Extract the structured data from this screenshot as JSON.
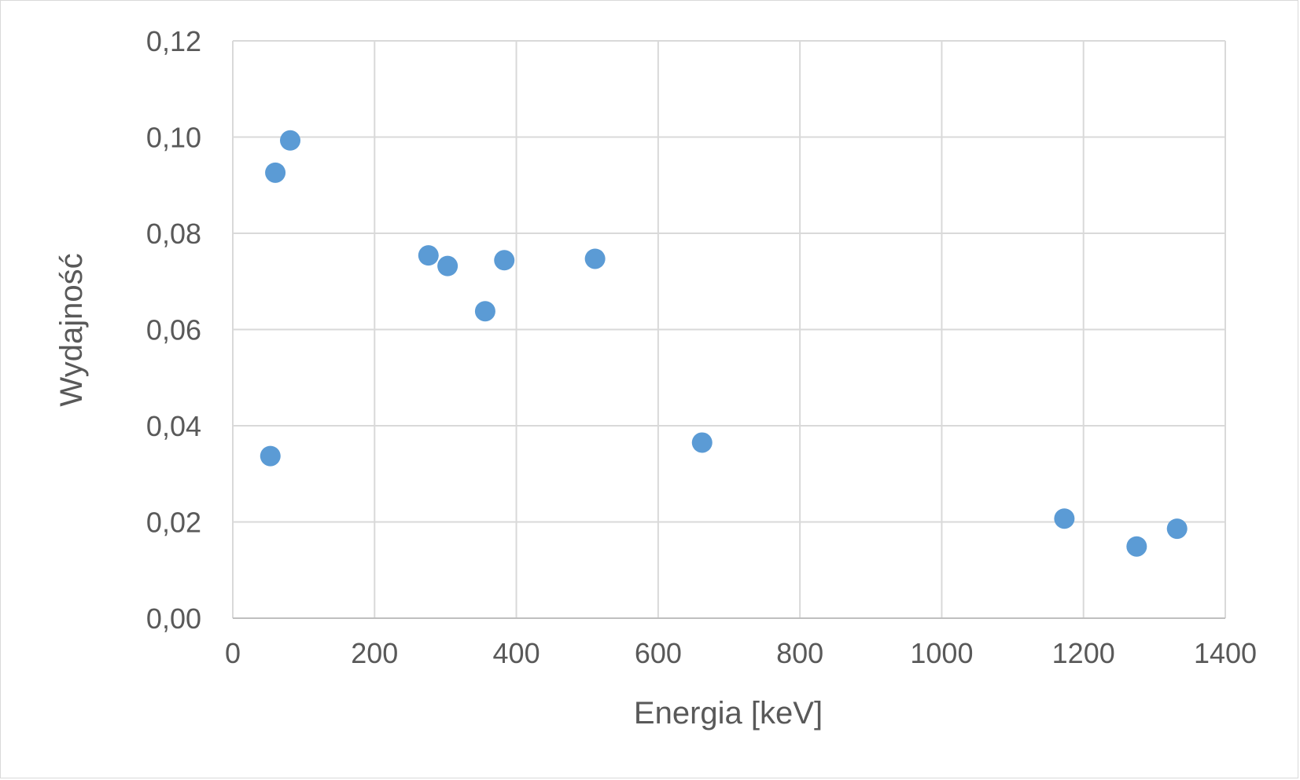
{
  "chart_data": {
    "type": "scatter",
    "title": "",
    "xlabel": "Energia [keV]",
    "ylabel": "Wydajność",
    "xlim": [
      0,
      1400
    ],
    "ylim": [
      0,
      0.12
    ],
    "x_ticks": [
      "0",
      "200",
      "400",
      "600",
      "800",
      "1000",
      "1200",
      "1400"
    ],
    "y_ticks": [
      "0,00",
      "0,02",
      "0,04",
      "0,06",
      "0,08",
      "0,10",
      "0,12"
    ],
    "grid": true,
    "legend": "none",
    "marker_color": "#5b9bd5",
    "series": [
      {
        "x": [
          53,
          60,
          81,
          276,
          303,
          356,
          383,
          511,
          662,
          1173,
          1275,
          1332
        ],
        "y": [
          0.0337,
          0.0926,
          0.0993,
          0.0754,
          0.0732,
          0.0638,
          0.0744,
          0.0747,
          0.0365,
          0.0207,
          0.0149,
          0.0186
        ]
      }
    ]
  }
}
